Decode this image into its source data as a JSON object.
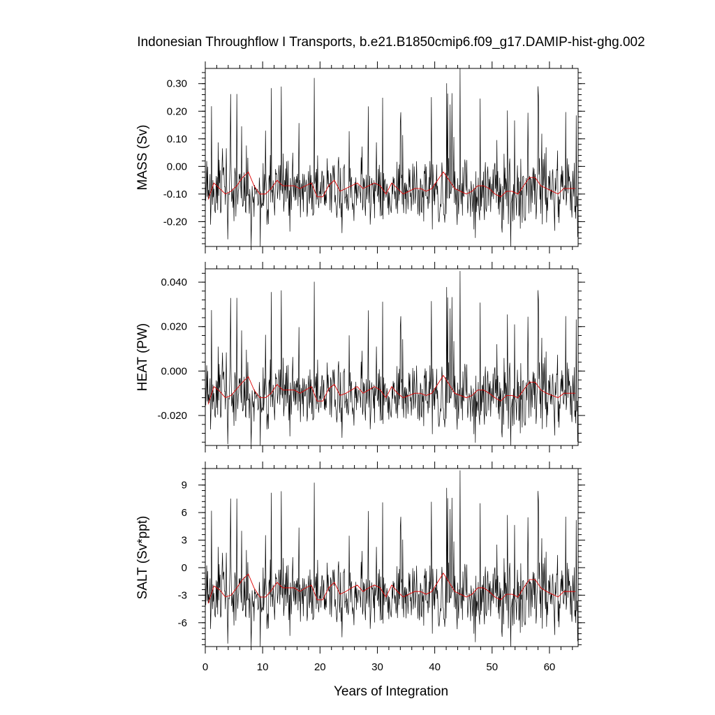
{
  "chart_data": {
    "type": "line",
    "title": "Indonesian Throughflow I Transports, b.e21.B1850cmip6.f09_g17.DAMIP-hist-ghg.002",
    "xlabel": "Years of Integration",
    "xlim": [
      0,
      65
    ],
    "xticks": [
      0,
      10,
      20,
      30,
      40,
      50,
      60
    ],
    "xtick_labels": [
      "0",
      "10",
      "20",
      "30",
      "40",
      "50",
      "60"
    ],
    "grid": false,
    "series_colors": {
      "monthly": "#000000",
      "annual_mean": "#e00000"
    },
    "panels": [
      {
        "ylabel": "MASS (Sv)",
        "ylim": [
          -0.29,
          0.355
        ],
        "yticks": [
          0.3,
          0.2,
          0.1,
          0.0,
          -0.1,
          -0.2
        ],
        "ytick_labels": [
          "0.30",
          "0.20",
          "0.10",
          "0.00",
          "-0.10",
          "-0.20"
        ],
        "monthly_mean": -0.085,
        "monthly_amplitude": 0.14,
        "spike_max": 0.355,
        "trough_min": -0.29,
        "annual_mean": [
          -0.12,
          -0.06,
          -0.08,
          -0.1,
          -0.09,
          -0.07,
          -0.04,
          -0.02,
          -0.07,
          -0.1,
          -0.1,
          -0.08,
          -0.05,
          -0.07,
          -0.07,
          -0.07,
          -0.08,
          -0.07,
          -0.06,
          -0.11,
          -0.11,
          -0.07,
          -0.05,
          -0.09,
          -0.08,
          -0.07,
          -0.06,
          -0.08,
          -0.07,
          -0.06,
          -0.07,
          -0.1,
          -0.06,
          -0.08,
          -0.1,
          -0.09,
          -0.08,
          -0.08,
          -0.09,
          -0.08,
          -0.05,
          -0.02,
          -0.05,
          -0.08,
          -0.09,
          -0.1,
          -0.09,
          -0.07,
          -0.07,
          -0.08,
          -0.1,
          -0.11,
          -0.09,
          -0.09,
          -0.1,
          -0.07,
          -0.04,
          -0.04,
          -0.07,
          -0.08,
          -0.09,
          -0.1,
          -0.08,
          -0.08,
          -0.08
        ]
      },
      {
        "ylabel": "HEAT (PW)",
        "ylim": [
          -0.0335,
          0.046
        ],
        "yticks": [
          0.04,
          0.02,
          0.0,
          -0.02
        ],
        "ytick_labels": [
          "0.040",
          "0.020",
          "0.000",
          "-0.020"
        ],
        "monthly_mean": -0.0105,
        "monthly_amplitude": 0.0175,
        "spike_max": 0.045,
        "trough_min": -0.0335,
        "annual_mean": [
          -0.015,
          -0.007,
          -0.009,
          -0.012,
          -0.011,
          -0.008,
          -0.005,
          -0.0025,
          -0.0085,
          -0.012,
          -0.012,
          -0.01,
          -0.006,
          -0.0085,
          -0.0085,
          -0.0085,
          -0.01,
          -0.0085,
          -0.007,
          -0.0135,
          -0.0135,
          -0.008,
          -0.006,
          -0.011,
          -0.01,
          -0.0085,
          -0.007,
          -0.01,
          -0.0085,
          -0.007,
          -0.0085,
          -0.012,
          -0.007,
          -0.01,
          -0.012,
          -0.011,
          -0.01,
          -0.01,
          -0.011,
          -0.01,
          -0.006,
          -0.002,
          -0.006,
          -0.01,
          -0.011,
          -0.012,
          -0.011,
          -0.0085,
          -0.0085,
          -0.01,
          -0.012,
          -0.0135,
          -0.011,
          -0.011,
          -0.012,
          -0.0085,
          -0.005,
          -0.005,
          -0.0085,
          -0.01,
          -0.011,
          -0.012,
          -0.01,
          -0.01,
          -0.01
        ]
      },
      {
        "ylabel": "SALT (Sv*ppt)",
        "ylim": [
          -8.6,
          10.8
        ],
        "yticks": [
          9,
          6,
          3,
          0,
          -3,
          -6
        ],
        "ytick_labels": [
          "9",
          "6",
          "3",
          "0",
          "-3",
          "-6"
        ],
        "monthly_mean": -2.9,
        "monthly_amplitude": 4.2,
        "spike_max": 10.6,
        "trough_min": -8.6,
        "annual_mean": [
          -3.9,
          -2.0,
          -2.4,
          -3.2,
          -3.0,
          -2.2,
          -1.3,
          -0.7,
          -2.2,
          -3.2,
          -3.2,
          -2.5,
          -1.6,
          -2.2,
          -2.2,
          -2.2,
          -2.6,
          -2.2,
          -1.9,
          -3.5,
          -3.5,
          -2.2,
          -1.6,
          -2.9,
          -2.6,
          -2.2,
          -1.9,
          -2.6,
          -2.2,
          -1.9,
          -2.2,
          -3.2,
          -1.9,
          -2.6,
          -3.2,
          -2.9,
          -2.6,
          -2.6,
          -2.9,
          -2.6,
          -1.6,
          -0.6,
          -1.6,
          -2.6,
          -2.9,
          -3.2,
          -2.9,
          -2.2,
          -2.2,
          -2.6,
          -3.2,
          -3.5,
          -2.9,
          -2.9,
          -3.2,
          -2.2,
          -1.3,
          -1.3,
          -2.2,
          -2.6,
          -2.9,
          -3.2,
          -2.6,
          -2.6,
          -2.6
        ]
      }
    ]
  }
}
